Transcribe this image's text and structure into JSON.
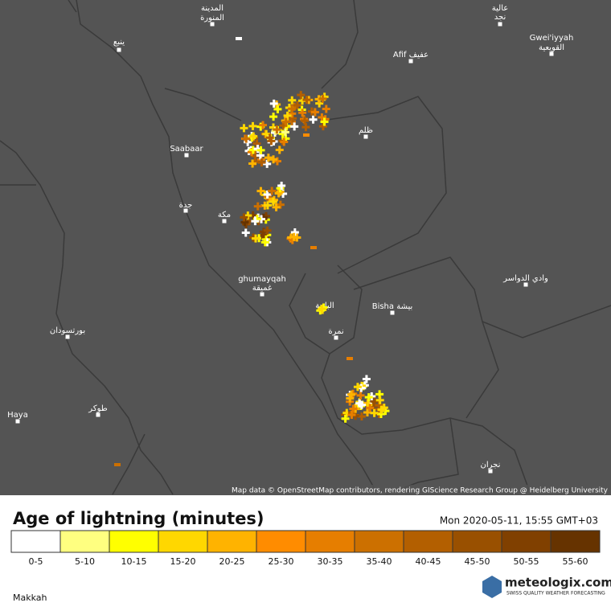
{
  "map": {
    "places": [
      "المدينة",
      "المنورة",
      "ينبع",
      "عالية",
      "نجد",
      "Gwei'iyyah",
      "القويعية",
      "Afif عفيف",
      "ظلم",
      "Saabaar",
      "جدة",
      "مكة",
      "ghumayqah",
      "غميقة",
      "الباحة",
      "Bisha بيشة",
      "نمرة",
      "وادي الدواسر",
      "بورتسودان",
      "Haya",
      "طوكر",
      "نجران"
    ],
    "attribution": "Map data © OpenStreetMap contributors, rendering GIScience Research Group @ Heidelberg University"
  },
  "legend": {
    "title": "Age of lightning (minutes)",
    "timestamp": "Mon 2020-05-11, 15:55 GMT+03",
    "bins": [
      {
        "label": "0-5",
        "color": "#ffffff"
      },
      {
        "label": "5-10",
        "color": "#ffff80"
      },
      {
        "label": "10-15",
        "color": "#ffff00"
      },
      {
        "label": "15-20",
        "color": "#ffd700"
      },
      {
        "label": "20-25",
        "color": "#ffb300"
      },
      {
        "label": "25-30",
        "color": "#ff8c00"
      },
      {
        "label": "30-35",
        "color": "#e67e00"
      },
      {
        "label": "35-40",
        "color": "#cc7000"
      },
      {
        "label": "40-45",
        "color": "#b35f00"
      },
      {
        "label": "45-50",
        "color": "#995000"
      },
      {
        "label": "50-55",
        "color": "#804000"
      },
      {
        "label": "55-60",
        "color": "#663300"
      }
    ]
  },
  "region": "Makkah",
  "brand": {
    "name": "meteologix.com",
    "tagline": "SWISS QUALITY WEATHER FORECASTING"
  }
}
